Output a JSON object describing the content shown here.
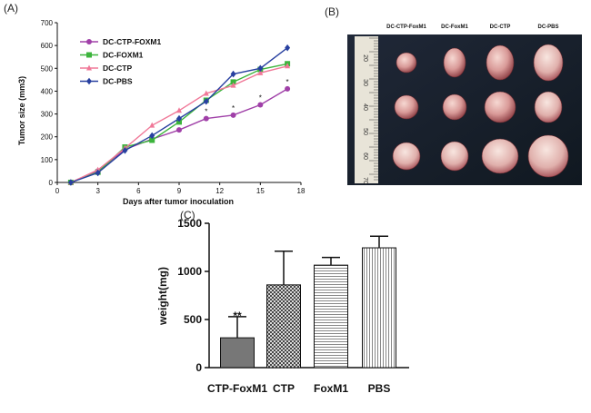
{
  "panel_labels": {
    "a": "(A)",
    "b": "(B)",
    "c": "(C)"
  },
  "photo": {
    "column_labels": [
      "DC-CTP-FoxM1",
      "DC-FoxM1",
      "DC-CTP",
      "DC-PBS"
    ],
    "ruler_numbers": [
      "20",
      "30",
      "40",
      "50",
      "60",
      "70"
    ]
  },
  "chart_data": [
    {
      "type": "line",
      "title": "",
      "xlabel": "Days after tumor inoculation",
      "ylabel": "Tumor size (mm3)",
      "xlim": [
        0,
        18
      ],
      "ylim": [
        0,
        700
      ],
      "xticks": [
        0,
        3,
        6,
        9,
        12,
        15,
        18
      ],
      "yticks": [
        0,
        100,
        200,
        300,
        400,
        500,
        600,
        700
      ],
      "x": [
        1,
        3,
        5,
        7,
        9,
        11,
        13,
        15,
        17
      ],
      "series": [
        {
          "name": "DC-CTP-FOXM1",
          "color": "#a040a8",
          "marker": "circle",
          "values": [
            0,
            50,
            145,
            190,
            230,
            280,
            295,
            340,
            410
          ]
        },
        {
          "name": "DC-FOXM1",
          "color": "#3cb43c",
          "marker": "square",
          "values": [
            0,
            45,
            155,
            185,
            265,
            360,
            440,
            495,
            520
          ]
        },
        {
          "name": "DC-CTP",
          "color": "#f07898",
          "marker": "triangle",
          "values": [
            0,
            55,
            150,
            250,
            315,
            390,
            425,
            480,
            510
          ]
        },
        {
          "name": "DC-PBS",
          "color": "#2840a0",
          "marker": "diamond",
          "values": [
            0,
            42,
            140,
            205,
            280,
            355,
            475,
            500,
            590
          ]
        }
      ],
      "annotations": [
        {
          "x": 11,
          "y": 280,
          "text": "*"
        },
        {
          "x": 13,
          "y": 295,
          "text": "*"
        },
        {
          "x": 15,
          "y": 340,
          "text": "*"
        },
        {
          "x": 17,
          "y": 410,
          "text": "*"
        }
      ],
      "legend_position": "top-left"
    },
    {
      "type": "bar",
      "title": "",
      "xlabel": "",
      "ylabel": "weight(mg)",
      "ylim": [
        0,
        1500
      ],
      "yticks": [
        0,
        500,
        1000,
        1500
      ],
      "categories": [
        "CTP-FoxM1",
        "CTP",
        "FoxM1",
        "PBS"
      ],
      "values": [
        310,
        860,
        1065,
        1245
      ],
      "errors": [
        220,
        350,
        80,
        120
      ],
      "patterns": [
        "solid-gray",
        "crosshatch",
        "horizontal",
        "vertical"
      ],
      "annotations": [
        {
          "category": "CTP-FoxM1",
          "text": "**"
        }
      ]
    }
  ]
}
